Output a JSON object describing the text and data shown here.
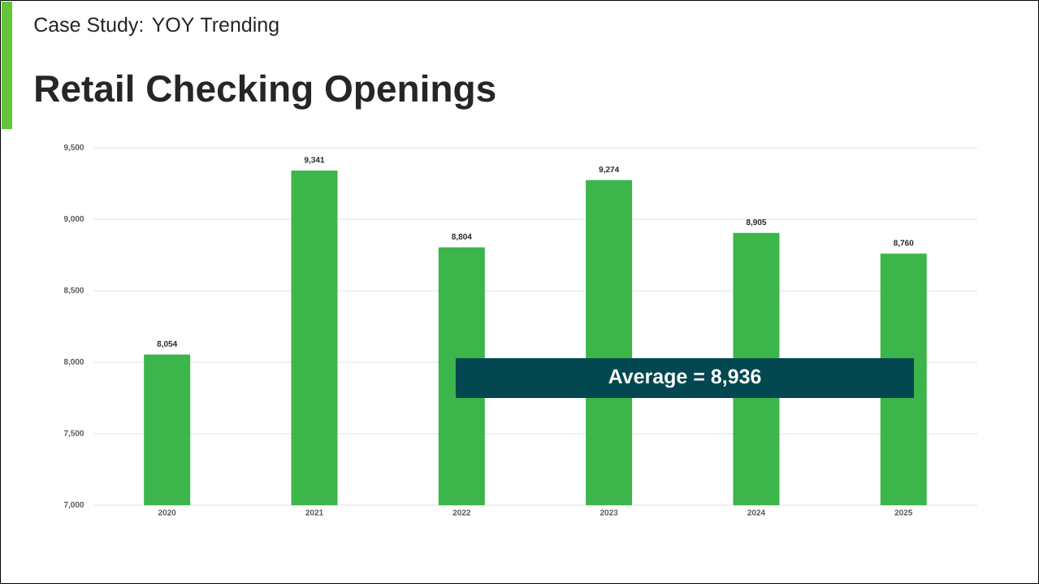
{
  "chart_data": {
    "type": "bar",
    "title": "Retail Checking Openings",
    "subtitle": "Case Study: YOY Trending",
    "categories": [
      "2020",
      "2021",
      "2022",
      "2023",
      "2024",
      "2025"
    ],
    "values": [
      8054,
      9341,
      8804,
      9274,
      8905,
      8760
    ],
    "value_labels": [
      "8,054",
      "9,341",
      "8,804",
      "9,274",
      "8,905",
      "8,760"
    ],
    "color": "#3cb54a",
    "ylim": [
      7000,
      9500
    ],
    "yticks": [
      {
        "value": 7000,
        "label": "7,000"
      },
      {
        "value": 7500,
        "label": "7,500"
      },
      {
        "value": 8000,
        "label": "8,000"
      },
      {
        "value": 8500,
        "label": "8,500"
      },
      {
        "value": 9000,
        "label": "9,000"
      },
      {
        "value": 9500,
        "label": "9,500"
      }
    ],
    "grid": "y",
    "annotations": [
      "Average = 8,936"
    ]
  }
}
